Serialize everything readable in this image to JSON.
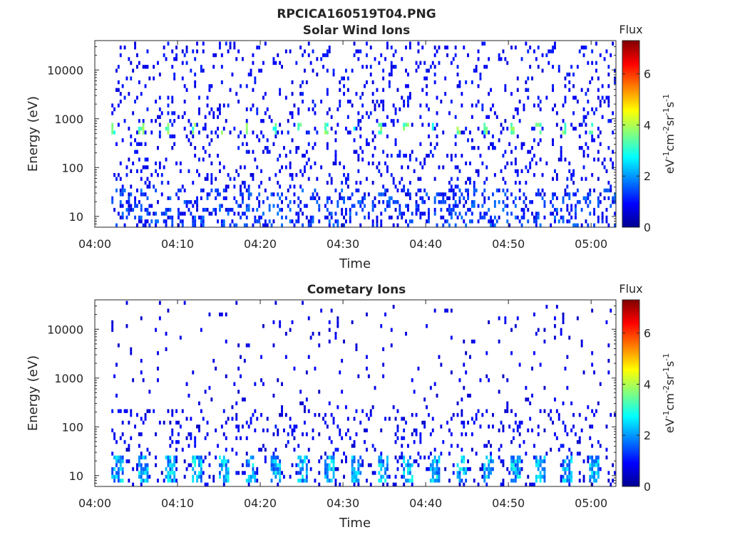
{
  "figure": {
    "title": "RPCICA160519T04.PNG"
  },
  "chart_data": [
    {
      "type": "heatmap",
      "title": "Solar Wind Ions",
      "xlabel": "Time",
      "ylabel": "Energy (eV)",
      "x_ticks": [
        "04:00",
        "04:10",
        "04:20",
        "04:30",
        "04:40",
        "04:50",
        "05:00"
      ],
      "xlim": [
        "04:00",
        "05:03"
      ],
      "y_scale": "log",
      "y_ticks": [
        10,
        100,
        1000,
        10000
      ],
      "y_tick_labels": [
        "10",
        "100",
        "1000",
        "10000"
      ],
      "ylim": [
        6,
        40000
      ],
      "colorbar": {
        "title": "Flux",
        "label": "eV-1cm-2sr-1s-1",
        "ticks": [
          0,
          2,
          4,
          6
        ],
        "tick_labels": [
          "0",
          "2",
          "4",
          "6"
        ],
        "range": [
          0,
          7.3
        ],
        "colormap": "jet"
      },
      "data_start": "04:02",
      "data_end": "05:03",
      "features": {
        "beam_energy_ev": 650,
        "beam_flux_peak": 4.0,
        "beam_period_minutes": 3.2,
        "background_flux": 1.0,
        "low_energy_flux": 1.2
      }
    },
    {
      "type": "heatmap",
      "title": "Cometary Ions",
      "xlabel": "Time",
      "ylabel": "Energy (eV)",
      "x_ticks": [
        "04:00",
        "04:10",
        "04:20",
        "04:30",
        "04:40",
        "04:50",
        "05:00"
      ],
      "xlim": [
        "04:00",
        "05:03"
      ],
      "y_scale": "log",
      "y_ticks": [
        10,
        100,
        1000,
        10000
      ],
      "y_tick_labels": [
        "10",
        "100",
        "1000",
        "10000"
      ],
      "ylim": [
        6,
        40000
      ],
      "colorbar": {
        "title": "Flux",
        "label": "eV-1cm-2sr-1s-1",
        "ticks": [
          0,
          2,
          4,
          6
        ],
        "tick_labels": [
          "0",
          "2",
          "4",
          "6"
        ],
        "range": [
          0,
          7.3
        ],
        "colormap": "jet"
      },
      "data_start": "04:02",
      "data_end": "05:03",
      "features": {
        "low_energy_band_ev": [
          7,
          25
        ],
        "low_energy_flux_peak": 3.0,
        "band_period_minutes": 3.2,
        "background_flux": 0.8
      }
    }
  ]
}
